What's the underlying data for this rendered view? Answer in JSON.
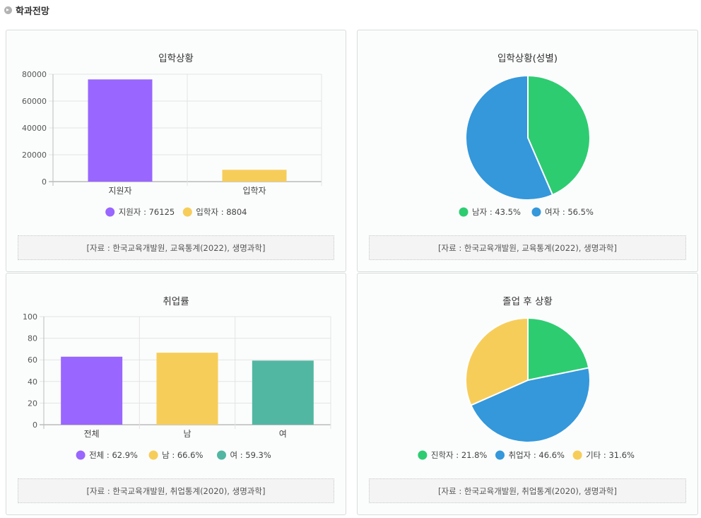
{
  "section": {
    "title": "학과전망"
  },
  "cards": [
    {
      "title": "입학상황",
      "source": "[자료 : 한국교육개발원, 교육통계(2022), 생명과학]"
    },
    {
      "title": "입학상황(성별)",
      "source": "[자료 : 한국교육개발원, 교육통계(2022), 생명과학]"
    },
    {
      "title": "취업률",
      "source": "[자료 : 한국교육개발원, 취업통계(2020), 생명과학]"
    },
    {
      "title": "졸업 후 상황",
      "source": "[자료 : 한국교육개발원, 취업통계(2020), 생명과학]"
    }
  ],
  "chart_data": [
    {
      "type": "bar",
      "title": "입학상황",
      "categories": [
        "지원자",
        "입학자"
      ],
      "values": [
        76125,
        8804
      ],
      "colors": [
        "#9966ff",
        "#f7cd5a"
      ],
      "ylim": [
        0,
        80000
      ],
      "yticks": [
        0,
        20000,
        40000,
        60000,
        80000
      ],
      "legend": [
        "지원자 : 76125",
        "입학자 : 8804"
      ],
      "grid": true,
      "legend_position": "bottom"
    },
    {
      "type": "pie",
      "title": "입학상황(성별)",
      "labels": [
        "남자",
        "여자"
      ],
      "values": [
        43.5,
        56.5
      ],
      "colors": [
        "#2ecc71",
        "#3498db"
      ],
      "legend": [
        "남자 : 43.5%",
        "여자 : 56.5%"
      ],
      "legend_position": "bottom"
    },
    {
      "type": "bar",
      "title": "취업률",
      "categories": [
        "전체",
        "남",
        "여"
      ],
      "values": [
        62.9,
        66.6,
        59.3
      ],
      "colors": [
        "#9966ff",
        "#f7cd5a",
        "#52b7a2"
      ],
      "ylim": [
        0,
        100
      ],
      "yticks": [
        0,
        20,
        40,
        60,
        80,
        100
      ],
      "legend": [
        "전체 : 62.9%",
        "남 : 66.6%",
        "여 : 59.3%"
      ],
      "grid": true,
      "legend_position": "bottom"
    },
    {
      "type": "pie",
      "title": "졸업 후 상황",
      "labels": [
        "진학자",
        "취업자",
        "기타"
      ],
      "values": [
        21.8,
        46.6,
        31.6
      ],
      "colors": [
        "#2ecc71",
        "#3498db",
        "#f7cd5a"
      ],
      "legend": [
        "진학자 : 21.8%",
        "취업자 : 46.6%",
        "기타 : 31.6%"
      ],
      "legend_position": "bottom"
    }
  ]
}
